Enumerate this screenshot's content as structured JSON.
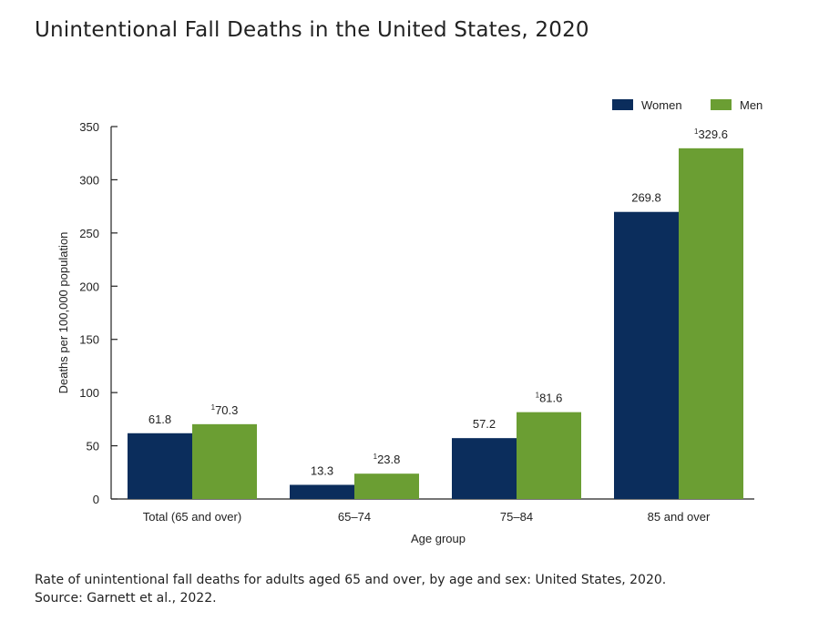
{
  "page": {
    "title": "Unintentional Fall Deaths in the United States, 2020",
    "caption_line1": "Rate of unintentional fall deaths for adults aged 65 and over, by age and sex: United States, 2020.",
    "caption_line2": "Source: Garnett et al., 2022."
  },
  "colors": {
    "women": "#0b2d5c",
    "men": "#6b9e33"
  },
  "chart_data": {
    "type": "bar",
    "title": "Unintentional Fall Deaths in the United States, 2020",
    "xlabel": "Age group",
    "ylabel": "Deaths per 100,000 population",
    "ylim": [
      0,
      350
    ],
    "yticks": [
      0,
      50,
      100,
      150,
      200,
      250,
      300,
      350
    ],
    "grid": false,
    "legend_position": "top-right",
    "categories": [
      "Total (65 and over)",
      "65–74",
      "75–84",
      "85 and over"
    ],
    "series": [
      {
        "name": "Women",
        "key": "women",
        "values": [
          61.8,
          13.3,
          57.2,
          269.8
        ],
        "labels": [
          "61.8",
          "13.3",
          "57.2",
          "269.8"
        ],
        "marks": [
          "",
          "",
          "",
          ""
        ]
      },
      {
        "name": "Men",
        "key": "men",
        "values": [
          70.3,
          23.8,
          81.6,
          329.6
        ],
        "labels": [
          "70.3",
          "23.8",
          "81.6",
          "329.6"
        ],
        "marks": [
          "1",
          "1",
          "1",
          "1"
        ]
      }
    ]
  }
}
